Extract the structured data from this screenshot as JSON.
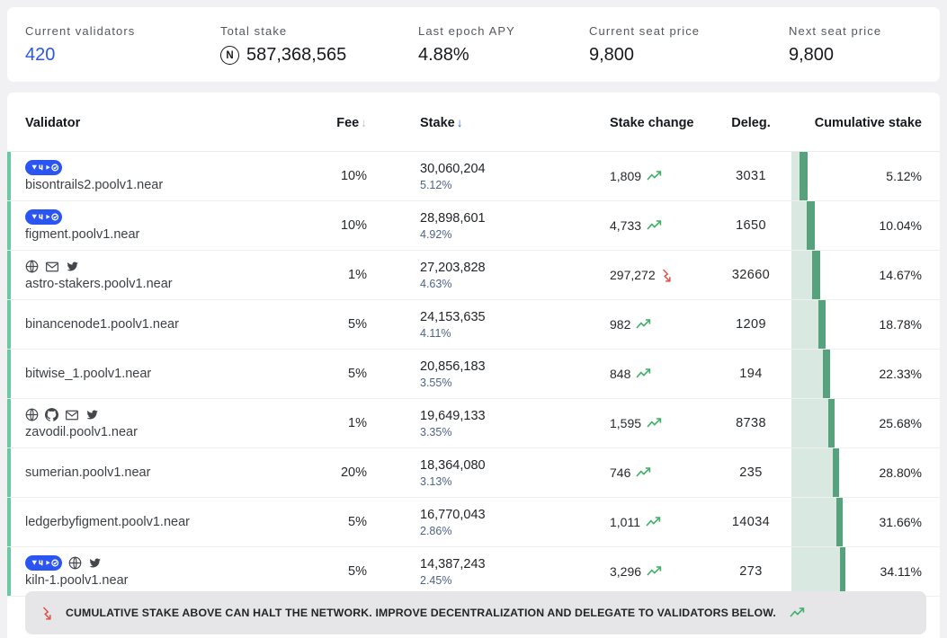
{
  "stats": {
    "near_symbol": "N",
    "items": [
      {
        "label": "Current validators",
        "value": "420"
      },
      {
        "label": "Total stake",
        "value": "587,368,565"
      },
      {
        "label": "Last epoch APY",
        "value": "4.88%"
      },
      {
        "label": "Current seat price",
        "value": "9,800"
      },
      {
        "label": "Next seat price",
        "value": "9,800"
      }
    ]
  },
  "table": {
    "sort_indicator": "↓",
    "columns": {
      "validator": "Validator",
      "fee": "Fee",
      "stake": "Stake",
      "stake_change": "Stake change",
      "deleg": "Deleg.",
      "cumulative": "Cumulative stake"
    },
    "rows": [
      {
        "name": "bisontrails2.poolv1.near",
        "icons": [
          "vhp-badge"
        ],
        "fee": "10%",
        "stake": "30,060,204",
        "stake_pct": "5.12%",
        "change": "1,809",
        "change_dir": "up",
        "deleg": "3031",
        "cumulative": "5.12%",
        "cum_pct": 5.12,
        "share_pct": 5.12
      },
      {
        "name": "figment.poolv1.near",
        "icons": [
          "vhp-badge"
        ],
        "fee": "10%",
        "stake": "28,898,601",
        "stake_pct": "4.92%",
        "change": "4,733",
        "change_dir": "up",
        "deleg": "1650",
        "cumulative": "10.04%",
        "cum_pct": 10.04,
        "share_pct": 4.92
      },
      {
        "name": "astro-stakers.poolv1.near",
        "icons": [
          "globe",
          "email",
          "twitter"
        ],
        "fee": "1%",
        "stake": "27,203,828",
        "stake_pct": "4.63%",
        "change": "297,272",
        "change_dir": "down",
        "deleg": "32660",
        "cumulative": "14.67%",
        "cum_pct": 14.67,
        "share_pct": 4.63
      },
      {
        "name": "binancenode1.poolv1.near",
        "icons": [],
        "fee": "5%",
        "stake": "24,153,635",
        "stake_pct": "4.11%",
        "change": "982",
        "change_dir": "up",
        "deleg": "1209",
        "cumulative": "18.78%",
        "cum_pct": 18.78,
        "share_pct": 4.11
      },
      {
        "name": "bitwise_1.poolv1.near",
        "icons": [],
        "fee": "5%",
        "stake": "20,856,183",
        "stake_pct": "3.55%",
        "change": "848",
        "change_dir": "up",
        "deleg": "194",
        "cumulative": "22.33%",
        "cum_pct": 22.33,
        "share_pct": 3.55
      },
      {
        "name": "zavodil.poolv1.near",
        "icons": [
          "globe",
          "github",
          "email",
          "twitter"
        ],
        "fee": "1%",
        "stake": "19,649,133",
        "stake_pct": "3.35%",
        "change": "1,595",
        "change_dir": "up",
        "deleg": "8738",
        "cumulative": "25.68%",
        "cum_pct": 25.68,
        "share_pct": 3.35
      },
      {
        "name": "sumerian.poolv1.near",
        "icons": [],
        "fee": "20%",
        "stake": "18,364,080",
        "stake_pct": "3.13%",
        "change": "746",
        "change_dir": "up",
        "deleg": "235",
        "cumulative": "28.80%",
        "cum_pct": 28.8,
        "share_pct": 3.13
      },
      {
        "name": "ledgerbyfigment.poolv1.near",
        "icons": [],
        "fee": "5%",
        "stake": "16,770,043",
        "stake_pct": "2.86%",
        "change": "1,011",
        "change_dir": "up",
        "deleg": "14034",
        "cumulative": "31.66%",
        "cum_pct": 31.66,
        "share_pct": 2.86
      },
      {
        "name": "kiln-1.poolv1.near",
        "icons": [
          "vhp-badge",
          "globe",
          "twitter"
        ],
        "fee": "5%",
        "stake": "14,387,243",
        "stake_pct": "2.45%",
        "change": "3,296",
        "change_dir": "up",
        "deleg": "273",
        "cumulative": "34.11%",
        "cum_pct": 34.11,
        "share_pct": 2.45
      }
    ]
  },
  "warning": {
    "text": "CUMULATIVE STAKE ABOVE CAN HALT THE NETWORK. IMPROVE DECENTRALIZATION AND DELEGATE TO VALIDATORS BELOW."
  },
  "colors": {
    "accent": "#2b55f2",
    "trend-up": "#3fae68",
    "trend-down": "#e0504a",
    "bar-light": "#d9e8e0",
    "bar-dark": "#56a27c",
    "strip": "#68c9a2",
    "warn-bg": "#e6e6e8"
  }
}
